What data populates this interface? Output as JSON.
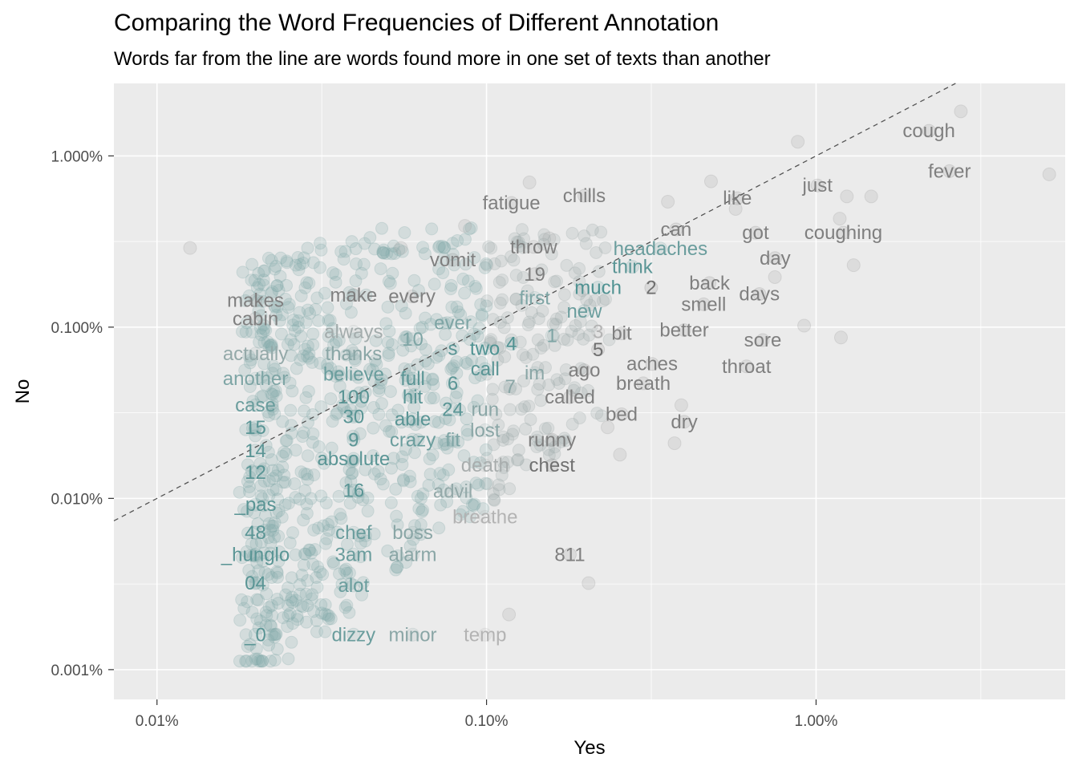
{
  "chart_data": {
    "type": "scatter",
    "title": "Comparing the Word Frequencies of Different Annotation",
    "subtitle": "Words far from the line are words found more in one set of texts than another",
    "xlabel": "Yes",
    "ylabel": "No",
    "x_scale": "log10",
    "y_scale": "log10",
    "xlim": [
      0.0074,
      5.7
    ],
    "ylim": [
      0.00067,
      2.65
    ],
    "x_ticks": [
      {
        "value": 0.01,
        "label": "0.01%"
      },
      {
        "value": 0.1,
        "label": "0.10%"
      },
      {
        "value": 1.0,
        "label": "1.00%"
      }
    ],
    "y_ticks": [
      {
        "value": 1.0,
        "label": "1.000%"
      },
      {
        "value": 0.1,
        "label": "0.100%"
      },
      {
        "value": 0.01,
        "label": "0.010%"
      },
      {
        "value": 0.001,
        "label": "0.001%"
      }
    ],
    "grid": true,
    "reference_line": {
      "type": "identity",
      "style": "dashed",
      "color": "#555555"
    },
    "color_scale": {
      "low": "#5a9595",
      "high": "#7f7f7f",
      "faded": "#b3b3b3"
    },
    "words": [
      {
        "word": "cough",
        "x": 2.2,
        "y": 1.4,
        "color": "#7f7f7f"
      },
      {
        "word": "fever",
        "x": 2.54,
        "y": 0.815,
        "color": "#7f7f7f"
      },
      {
        "word": "just",
        "x": 1.01,
        "y": 0.672,
        "color": "#7f7f7f"
      },
      {
        "word": "like",
        "x": 0.577,
        "y": 0.566,
        "color": "#7f7f7f"
      },
      {
        "word": "chills",
        "x": 0.198,
        "y": 0.585,
        "color": "#7f7f7f"
      },
      {
        "word": "fatigue",
        "x": 0.119,
        "y": 0.531,
        "color": "#7f7f7f"
      },
      {
        "word": "can",
        "x": 0.376,
        "y": 0.372,
        "color": "#7f7f7f"
      },
      {
        "word": "got",
        "x": 0.655,
        "y": 0.356,
        "color": "#7f7f7f"
      },
      {
        "word": "coughing",
        "x": 1.21,
        "y": 0.356,
        "color": "#7f7f7f"
      },
      {
        "word": "throw",
        "x": 0.139,
        "y": 0.294,
        "color": "#7f7f7f"
      },
      {
        "word": "headaches",
        "x": 0.337,
        "y": 0.288,
        "color": "#6a9d9d"
      },
      {
        "word": "vomit",
        "x": 0.079,
        "y": 0.247,
        "color": "#7f7f7f"
      },
      {
        "word": "day",
        "x": 0.751,
        "y": 0.253,
        "color": "#7f7f7f"
      },
      {
        "word": "think",
        "x": 0.277,
        "y": 0.225,
        "color": "#5a9595"
      },
      {
        "word": "19",
        "x": 0.14,
        "y": 0.204,
        "color": "#7f7f7f"
      },
      {
        "word": "back",
        "x": 0.475,
        "y": 0.181,
        "color": "#7f7f7f"
      },
      {
        "word": "much",
        "x": 0.218,
        "y": 0.17,
        "color": "#4f9292"
      },
      {
        "word": "2",
        "x": 0.316,
        "y": 0.17,
        "color": "#6f6f6f"
      },
      {
        "word": "days",
        "x": 0.673,
        "y": 0.156,
        "color": "#7f7f7f"
      },
      {
        "word": "makes",
        "x": 0.0199,
        "y": 0.143,
        "color": "#7f7f7f"
      },
      {
        "word": "make",
        "x": 0.0395,
        "y": 0.154,
        "color": "#7f7f7f"
      },
      {
        "word": "every",
        "x": 0.0594,
        "y": 0.151,
        "color": "#7f7f7f"
      },
      {
        "word": "first",
        "x": 0.14,
        "y": 0.148,
        "color": "#7ea5a5"
      },
      {
        "word": "smell",
        "x": 0.456,
        "y": 0.136,
        "color": "#7f7f7f"
      },
      {
        "word": "new",
        "x": 0.198,
        "y": 0.124,
        "color": "#6a9d9d"
      },
      {
        "word": "cabin",
        "x": 0.0199,
        "y": 0.112,
        "color": "#7f7f7f"
      },
      {
        "word": "ever",
        "x": 0.079,
        "y": 0.106,
        "color": "#7ea5a5"
      },
      {
        "word": "always",
        "x": 0.0395,
        "y": 0.094,
        "color": "#a3acac"
      },
      {
        "word": "better",
        "x": 0.398,
        "y": 0.096,
        "color": "#7f7f7f"
      },
      {
        "word": "3",
        "x": 0.218,
        "y": 0.094,
        "color": "#b3b3b3"
      },
      {
        "word": "bit",
        "x": 0.257,
        "y": 0.092,
        "color": "#7f7f7f"
      },
      {
        "word": "1",
        "x": 0.158,
        "y": 0.089,
        "color": "#7ea5a5"
      },
      {
        "word": "10",
        "x": 0.0597,
        "y": 0.085,
        "color": "#7ea5a5"
      },
      {
        "word": "sore",
        "x": 0.689,
        "y": 0.084,
        "color": "#7f7f7f"
      },
      {
        "word": "4",
        "x": 0.119,
        "y": 0.08,
        "color": "#4f9292"
      },
      {
        "word": "actually",
        "x": 0.0199,
        "y": 0.07,
        "color": "#94a9a9"
      },
      {
        "word": "thanks",
        "x": 0.0395,
        "y": 0.07,
        "color": "#8aa6a6"
      },
      {
        "word": "s",
        "x": 0.079,
        "y": 0.075,
        "color": "#5a9595"
      },
      {
        "word": "two",
        "x": 0.0989,
        "y": 0.075,
        "color": "#4f9292"
      },
      {
        "word": "5",
        "x": 0.218,
        "y": 0.074,
        "color": "#6f6f6f"
      },
      {
        "word": "aches",
        "x": 0.318,
        "y": 0.061,
        "color": "#7f7f7f"
      },
      {
        "word": "throat",
        "x": 0.615,
        "y": 0.059,
        "color": "#7f7f7f"
      },
      {
        "word": "call",
        "x": 0.099,
        "y": 0.057,
        "color": "#5a9595"
      },
      {
        "word": "im",
        "x": 0.14,
        "y": 0.054,
        "color": "#8aa6a6"
      },
      {
        "word": "ago",
        "x": 0.198,
        "y": 0.056,
        "color": "#7f7f7f"
      },
      {
        "word": "believe",
        "x": 0.0395,
        "y": 0.053,
        "color": "#6a9d9d"
      },
      {
        "word": "full",
        "x": 0.0597,
        "y": 0.05,
        "color": "#5a9595"
      },
      {
        "word": "another",
        "x": 0.0199,
        "y": 0.05,
        "color": "#7ea5a5"
      },
      {
        "word": "6",
        "x": 0.079,
        "y": 0.047,
        "color": "#5a9595"
      },
      {
        "word": "breath",
        "x": 0.299,
        "y": 0.047,
        "color": "#7f7f7f"
      },
      {
        "word": "7",
        "x": 0.118,
        "y": 0.045,
        "color": "#8aa6a6"
      },
      {
        "word": "100",
        "x": 0.0395,
        "y": 0.039,
        "color": "#5a9595"
      },
      {
        "word": "hit",
        "x": 0.0597,
        "y": 0.039,
        "color": "#5a9595"
      },
      {
        "word": "called",
        "x": 0.179,
        "y": 0.039,
        "color": "#7f7f7f"
      },
      {
        "word": "case",
        "x": 0.0199,
        "y": 0.035,
        "color": "#6a9d9d"
      },
      {
        "word": "24",
        "x": 0.079,
        "y": 0.033,
        "color": "#5a9595"
      },
      {
        "word": "run",
        "x": 0.099,
        "y": 0.033,
        "color": "#8aa6a6"
      },
      {
        "word": "bed",
        "x": 0.257,
        "y": 0.031,
        "color": "#7f7f7f"
      },
      {
        "word": "30",
        "x": 0.0395,
        "y": 0.03,
        "color": "#5a9595"
      },
      {
        "word": "able",
        "x": 0.0597,
        "y": 0.029,
        "color": "#5a9595"
      },
      {
        "word": "dry",
        "x": 0.398,
        "y": 0.028,
        "color": "#7f7f7f"
      },
      {
        "word": "15",
        "x": 0.0199,
        "y": 0.026,
        "color": "#5a9595"
      },
      {
        "word": "lost",
        "x": 0.099,
        "y": 0.025,
        "color": "#8aa6a6"
      },
      {
        "word": "9",
        "x": 0.0395,
        "y": 0.022,
        "color": "#5a9595"
      },
      {
        "word": "crazy",
        "x": 0.0597,
        "y": 0.022,
        "color": "#6a9d9d"
      },
      {
        "word": "fit",
        "x": 0.079,
        "y": 0.022,
        "color": "#7ea5a5"
      },
      {
        "word": "runny",
        "x": 0.158,
        "y": 0.022,
        "color": "#7f7f7f"
      },
      {
        "word": "14",
        "x": 0.0199,
        "y": 0.019,
        "color": "#5a9595"
      },
      {
        "word": "absolute",
        "x": 0.0395,
        "y": 0.017,
        "color": "#5a9595"
      },
      {
        "word": "death",
        "x": 0.099,
        "y": 0.0156,
        "color": "#a8adad"
      },
      {
        "word": "chest",
        "x": 0.158,
        "y": 0.0156,
        "color": "#707070"
      },
      {
        "word": "12",
        "x": 0.0199,
        "y": 0.0142,
        "color": "#5a9595"
      },
      {
        "word": "16",
        "x": 0.0395,
        "y": 0.0111,
        "color": "#5a9595"
      },
      {
        "word": "advil",
        "x": 0.079,
        "y": 0.011,
        "color": "#94a9a9"
      },
      {
        "word": "_pas",
        "x": 0.0199,
        "y": 0.0092,
        "color": "#5a9595"
      },
      {
        "word": "breathe",
        "x": 0.099,
        "y": 0.0078,
        "color": "#b3b3b3"
      },
      {
        "word": "48",
        "x": 0.0199,
        "y": 0.0063,
        "color": "#5a9595"
      },
      {
        "word": "chef",
        "x": 0.0395,
        "y": 0.0063,
        "color": "#6a9d9d"
      },
      {
        "word": "boss",
        "x": 0.0597,
        "y": 0.0063,
        "color": "#8aa6a6"
      },
      {
        "word": "_hunglo",
        "x": 0.0199,
        "y": 0.0047,
        "color": "#5a9595"
      },
      {
        "word": "3am",
        "x": 0.0395,
        "y": 0.0047,
        "color": "#6a9d9d"
      },
      {
        "word": "alarm",
        "x": 0.0597,
        "y": 0.0047,
        "color": "#8aa6a6"
      },
      {
        "word": "811",
        "x": 0.179,
        "y": 0.0047,
        "color": "#7f7f7f"
      },
      {
        "word": "04",
        "x": 0.0199,
        "y": 0.0032,
        "color": "#5a9595"
      },
      {
        "word": "alot",
        "x": 0.0395,
        "y": 0.0031,
        "color": "#6a9d9d"
      },
      {
        "word": "_0",
        "x": 0.0199,
        "y": 0.0016,
        "color": "#5a9595"
      },
      {
        "word": "dizzy",
        "x": 0.0395,
        "y": 0.0016,
        "color": "#6a9d9d"
      },
      {
        "word": "minor",
        "x": 0.0597,
        "y": 0.0016,
        "color": "#8aa6a6"
      },
      {
        "word": "temp",
        "x": 0.099,
        "y": 0.0016,
        "color": "#b3b3b3"
      }
    ],
    "isolated_points": [
      {
        "x": 2.75,
        "y": 1.82
      },
      {
        "x": 0.88,
        "y": 1.21
      },
      {
        "x": 5.1,
        "y": 0.78
      },
      {
        "x": 0.135,
        "y": 0.7
      },
      {
        "x": 0.48,
        "y": 0.71
      },
      {
        "x": 1.24,
        "y": 0.58
      },
      {
        "x": 1.47,
        "y": 0.58
      },
      {
        "x": 1.18,
        "y": 0.43
      },
      {
        "x": 0.57,
        "y": 0.49
      },
      {
        "x": 0.355,
        "y": 0.54
      },
      {
        "x": 0.086,
        "y": 0.39
      },
      {
        "x": 0.055,
        "y": 0.29
      },
      {
        "x": 0.0126,
        "y": 0.29
      },
      {
        "x": 0.155,
        "y": 0.33
      },
      {
        "x": 1.3,
        "y": 0.23
      },
      {
        "x": 0.92,
        "y": 0.102
      },
      {
        "x": 1.19,
        "y": 0.087
      },
      {
        "x": 0.75,
        "y": 0.196
      },
      {
        "x": 0.372,
        "y": 0.021
      },
      {
        "x": 0.204,
        "y": 0.0032
      },
      {
        "x": 0.117,
        "y": 0.0021
      },
      {
        "x": 0.254,
        "y": 0.018
      },
      {
        "x": 0.233,
        "y": 0.026
      },
      {
        "x": 0.39,
        "y": 0.035
      }
    ]
  }
}
